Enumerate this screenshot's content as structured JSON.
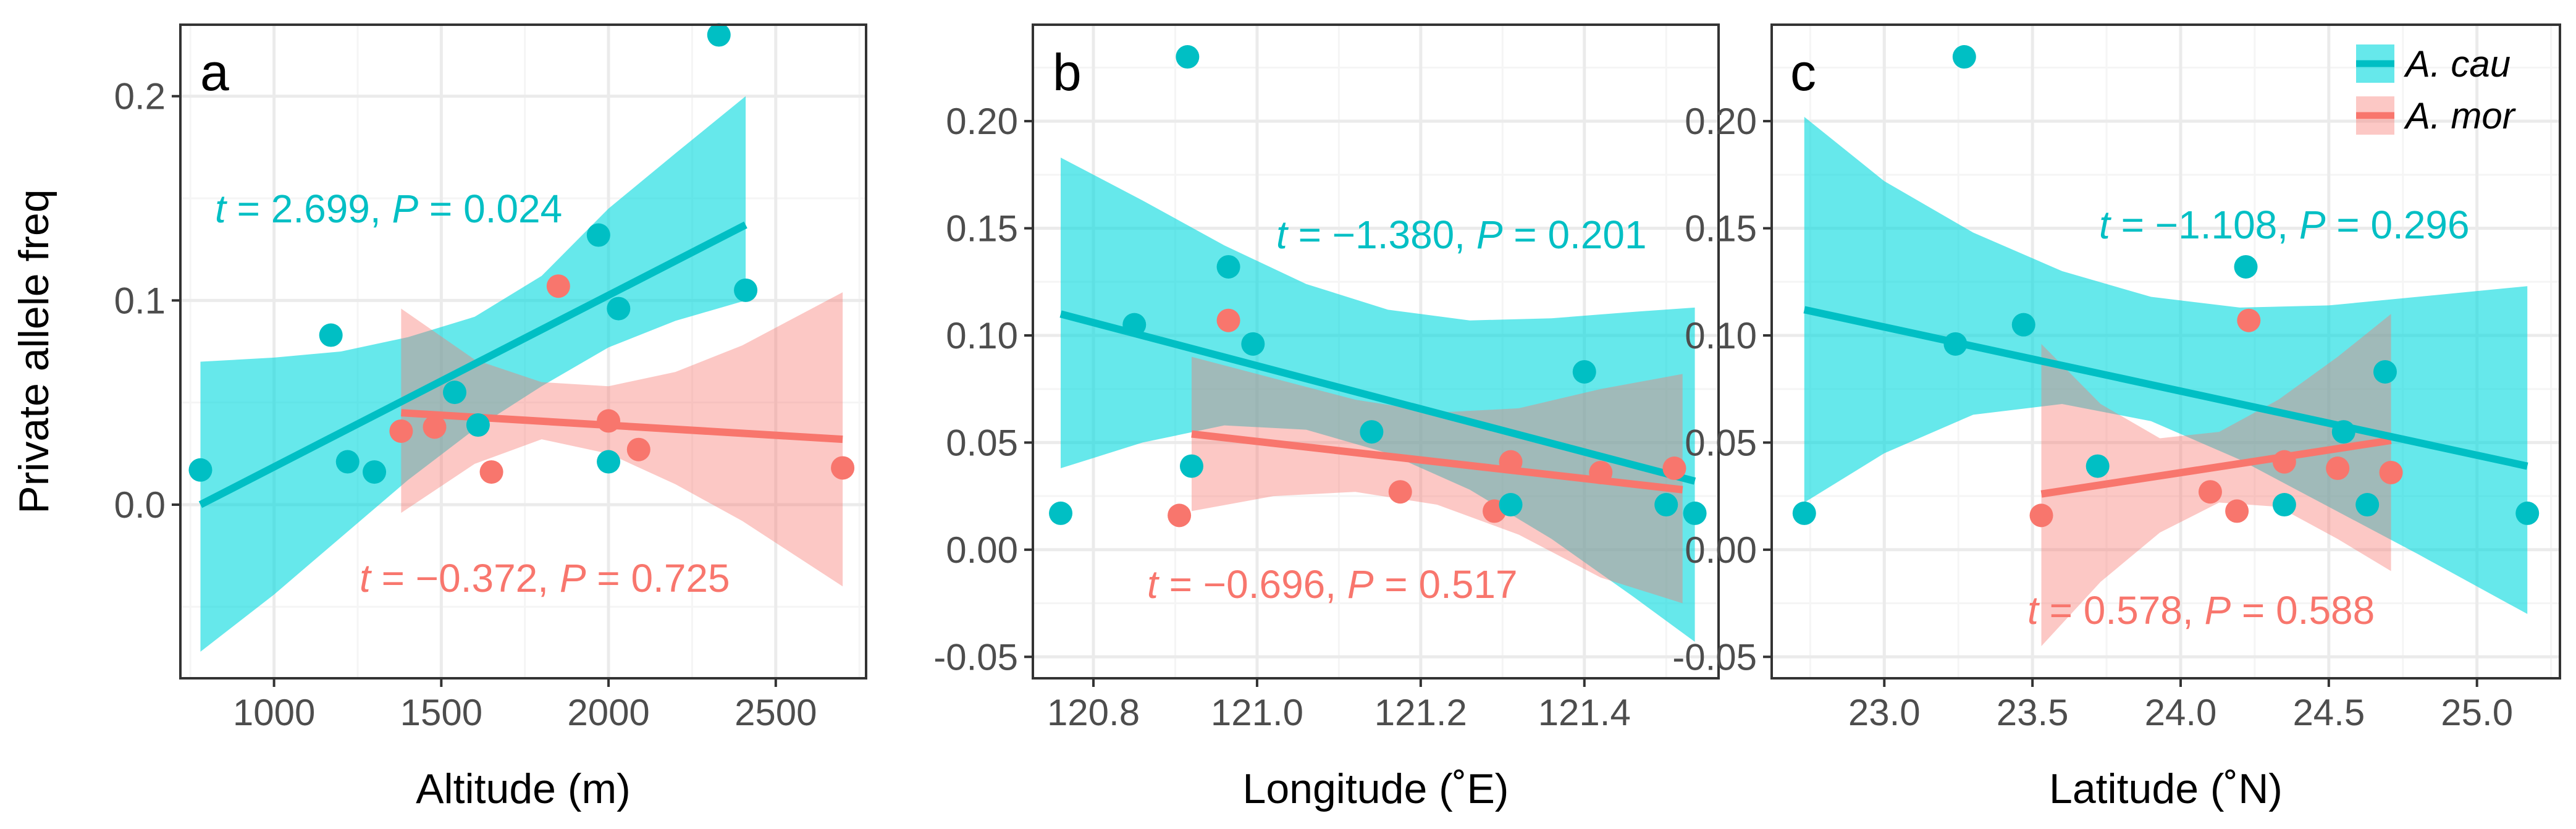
{
  "colors": {
    "cau": "#00BFC4",
    "mor": "#F8766D",
    "cau_band": "#00D8DE",
    "mor_band": "#F8766D",
    "grid_major": "#EBEBEB",
    "grid_minor": "#F5F5F5",
    "panel_border": "#333333",
    "tick_text": "#4D4D4D"
  },
  "legend": {
    "cau_label": "A. cau",
    "mor_label": "A. mor",
    "location": "top-right of panel c"
  },
  "chart_data": [
    {
      "type": "scatter",
      "panel_letter": "a",
      "xlabel": "Altitude (m)",
      "ylabel": "Private allele freq",
      "xlim": [
        720,
        2770
      ],
      "ylim": [
        -0.085,
        0.235
      ],
      "xticks": [
        1000,
        1500,
        2000,
        2500
      ],
      "xtick_labels": [
        "1000",
        "1500",
        "2000",
        "2500"
      ],
      "yticks": [
        0.0,
        0.1,
        0.2
      ],
      "ytick_labels": [
        "0.0",
        "0.1",
        "0.2"
      ],
      "grid": true,
      "series": [
        {
          "name": "A. cau",
          "color_key": "cau",
          "points": [
            [
              780,
              0.017
            ],
            [
              1170,
              0.083
            ],
            [
              1220,
              0.021
            ],
            [
              1300,
              0.016
            ],
            [
              1540,
              0.055
            ],
            [
              1610,
              0.039
            ],
            [
              1970,
              0.132
            ],
            [
              2000,
              0.021
            ],
            [
              2030,
              0.096
            ],
            [
              2330,
              0.23
            ],
            [
              2410,
              0.105
            ]
          ],
          "fit": {
            "x": [
              780,
              2410
            ],
            "y": [
              0.0,
              0.137
            ]
          },
          "band": {
            "x": [
              780,
              1000,
              1200,
              1400,
              1600,
              1800,
              2000,
              2200,
              2410
            ],
            "lower": [
              -0.072,
              -0.044,
              -0.016,
              0.012,
              0.037,
              0.058,
              0.077,
              0.09,
              0.1
            ],
            "upper": [
              0.07,
              0.072,
              0.075,
              0.082,
              0.092,
              0.112,
              0.145,
              0.172,
              0.2
            ]
          },
          "annotation": {
            "stat": "t",
            "equals": " = 2.699, ",
            "p_symbol": "P",
            "p_text": " = 0.024"
          }
        },
        {
          "name": "A. mor",
          "color_key": "mor",
          "points": [
            [
              1380,
              0.036
            ],
            [
              1480,
              0.038
            ],
            [
              1650,
              0.016
            ],
            [
              1850,
              0.107
            ],
            [
              2000,
              0.041
            ],
            [
              2090,
              0.027
            ],
            [
              2700,
              0.018
            ]
          ],
          "fit": {
            "x": [
              1380,
              2700
            ],
            "y": [
              0.045,
              0.032
            ]
          },
          "band": {
            "x": [
              1380,
              1600,
              1800,
              2000,
              2200,
              2400,
              2700
            ],
            "lower": [
              -0.004,
              0.02,
              0.032,
              0.025,
              0.01,
              -0.008,
              -0.04
            ],
            "upper": [
              0.096,
              0.071,
              0.06,
              0.058,
              0.065,
              0.078,
              0.104
            ]
          },
          "annotation": {
            "stat": "t",
            "equals": " = −0.372, ",
            "p_symbol": "P",
            "p_text": " = 0.725"
          }
        }
      ]
    },
    {
      "type": "scatter",
      "panel_letter": "b",
      "xlabel": "Longitude (˚E)",
      "ylabel": "",
      "xlim": [
        120.726,
        121.564
      ],
      "ylim": [
        -0.06,
        0.245
      ],
      "xticks": [
        120.8,
        121.0,
        121.2,
        121.4
      ],
      "xtick_labels": [
        "120.8",
        "121.0",
        "121.2",
        "121.4"
      ],
      "yticks": [
        -0.05,
        0.0,
        0.05,
        0.1,
        0.15,
        0.2
      ],
      "ytick_labels": [
        "-0.05",
        "0.00",
        "0.05",
        "0.10",
        "0.15",
        "0.20"
      ],
      "grid": true,
      "series": [
        {
          "name": "A. cau",
          "color_key": "cau",
          "points": [
            [
              120.76,
              0.017
            ],
            [
              120.85,
              0.105
            ],
            [
              120.915,
              0.23
            ],
            [
              120.92,
              0.039
            ],
            [
              120.965,
              0.132
            ],
            [
              120.995,
              0.096
            ],
            [
              121.14,
              0.055
            ],
            [
              121.31,
              0.021
            ],
            [
              121.4,
              0.083
            ],
            [
              121.5,
              0.021
            ],
            [
              121.535,
              0.017
            ]
          ],
          "fit": {
            "x": [
              120.76,
              121.535
            ],
            "y": [
              0.11,
              0.032
            ]
          },
          "band": {
            "x": [
              120.76,
              120.86,
              120.96,
              121.06,
              121.16,
              121.26,
              121.36,
              121.46,
              121.535
            ],
            "lower": [
              0.038,
              0.05,
              0.058,
              0.056,
              0.045,
              0.028,
              0.005,
              -0.022,
              -0.043
            ],
            "upper": [
              0.183,
              0.163,
              0.142,
              0.124,
              0.112,
              0.107,
              0.108,
              0.111,
              0.113
            ]
          },
          "annotation": {
            "stat": "t",
            "equals": " = −1.380, ",
            "p_symbol": "P",
            "p_text": " = 0.201"
          }
        },
        {
          "name": "A. mor",
          "color_key": "mor",
          "points": [
            [
              120.905,
              0.016
            ],
            [
              120.965,
              0.107
            ],
            [
              121.175,
              0.027
            ],
            [
              121.29,
              0.018
            ],
            [
              121.31,
              0.041
            ],
            [
              121.42,
              0.036
            ],
            [
              121.51,
              0.038
            ]
          ],
          "fit": {
            "x": [
              120.92,
              121.52
            ],
            "y": [
              0.054,
              0.028
            ]
          },
          "band": {
            "x": [
              120.92,
              121.02,
              121.12,
              121.22,
              121.32,
              121.42,
              121.52
            ],
            "lower": [
              0.018,
              0.025,
              0.027,
              0.021,
              0.007,
              -0.013,
              -0.025
            ],
            "upper": [
              0.09,
              0.08,
              0.07,
              0.064,
              0.066,
              0.075,
              0.082
            ]
          },
          "annotation": {
            "stat": "t",
            "equals": " = −0.696, ",
            "p_symbol": "P",
            "p_text": " = 0.517"
          }
        }
      ]
    },
    {
      "type": "scatter",
      "panel_letter": "c",
      "xlabel": "Latitude (˚N)",
      "ylabel": "",
      "xlim": [
        22.62,
        25.28
      ],
      "ylim": [
        -0.06,
        0.245
      ],
      "xticks": [
        23.0,
        23.5,
        24.0,
        24.5,
        25.0
      ],
      "xtick_labels": [
        "23.0",
        "23.5",
        "24.0",
        "24.5",
        "25.0"
      ],
      "yticks": [
        -0.05,
        0.0,
        0.05,
        0.1,
        0.15,
        0.2
      ],
      "ytick_labels": [
        "-0.05",
        "0.00",
        "0.05",
        "0.10",
        "0.15",
        "0.20"
      ],
      "grid": true,
      "series": [
        {
          "name": "A. cau",
          "color_key": "cau",
          "points": [
            [
              22.73,
              0.017
            ],
            [
              23.24,
              0.096
            ],
            [
              23.27,
              0.23
            ],
            [
              23.47,
              0.105
            ],
            [
              23.72,
              0.039
            ],
            [
              24.22,
              0.132
            ],
            [
              24.35,
              0.021
            ],
            [
              24.55,
              0.055
            ],
            [
              24.63,
              0.021
            ],
            [
              24.69,
              0.083
            ],
            [
              25.17,
              0.017
            ]
          ],
          "fit": {
            "x": [
              22.73,
              25.17
            ],
            "y": [
              0.112,
              0.039
            ]
          },
          "band": {
            "x": [
              22.73,
              23.0,
              23.3,
              23.6,
              23.9,
              24.2,
              24.5,
              24.8,
              25.17
            ],
            "lower": [
              0.022,
              0.045,
              0.063,
              0.068,
              0.06,
              0.042,
              0.02,
              -0.002,
              -0.03
            ],
            "upper": [
              0.202,
              0.172,
              0.148,
              0.13,
              0.118,
              0.113,
              0.114,
              0.118,
              0.123
            ]
          },
          "annotation": {
            "stat": "t",
            "equals": " = −1.108, ",
            "p_symbol": "P",
            "p_text": " = 0.296"
          }
        },
        {
          "name": "A. mor",
          "color_key": "mor",
          "points": [
            [
              23.53,
              0.016
            ],
            [
              24.1,
              0.027
            ],
            [
              24.19,
              0.018
            ],
            [
              24.23,
              0.107
            ],
            [
              24.35,
              0.041
            ],
            [
              24.53,
              0.038
            ],
            [
              24.71,
              0.036
            ]
          ],
          "fit": {
            "x": [
              23.53,
              24.71
            ],
            "y": [
              0.026,
              0.051
            ]
          },
          "band": {
            "x": [
              23.53,
              23.73,
              23.93,
              24.13,
              24.33,
              24.53,
              24.71
            ],
            "lower": [
              -0.045,
              -0.015,
              0.008,
              0.022,
              0.02,
              0.005,
              -0.01
            ],
            "upper": [
              0.096,
              0.068,
              0.052,
              0.055,
              0.07,
              0.09,
              0.11
            ]
          },
          "annotation": {
            "stat": "t",
            "equals": " = 0.578, ",
            "p_symbol": "P",
            "p_text": " = 0.588"
          }
        }
      ]
    }
  ]
}
